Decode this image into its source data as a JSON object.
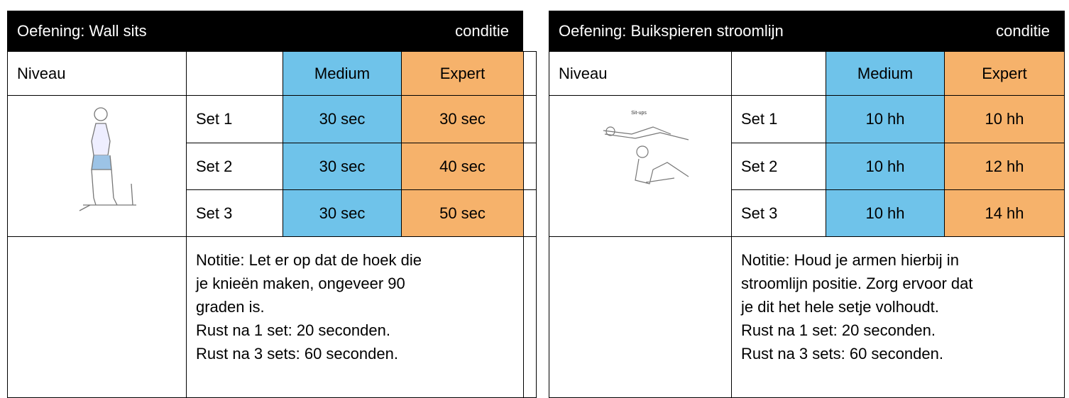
{
  "tables": [
    {
      "title": "Oefening: Wall sits",
      "category": "conditie",
      "level_label": "Niveau",
      "levels": [
        "Medium",
        "Expert"
      ],
      "rows": [
        {
          "label": "Set 1",
          "values": [
            "30 sec",
            "30 sec"
          ]
        },
        {
          "label": "Set 2",
          "values": [
            "30 sec",
            "40 sec"
          ]
        },
        {
          "label": "Set 3",
          "values": [
            "30 sec",
            "50 sec"
          ]
        }
      ],
      "note": [
        "Notitie: Let er op dat de hoek die",
        "je knieën maken, ongeveer 90",
        "graden is.",
        "Rust na 1 set: 20 seconden.",
        "Rust na 3 sets: 60 seconden."
      ]
    },
    {
      "title": "Oefening: Buikspieren stroomlijn",
      "category": "conditie",
      "level_label": "Niveau",
      "levels": [
        "Medium",
        "Expert"
      ],
      "image_caption": "Sit-ups",
      "rows": [
        {
          "label": "Set 1",
          "values": [
            "10 hh",
            "10 hh"
          ]
        },
        {
          "label": "Set 2",
          "values": [
            "10 hh",
            "12 hh"
          ]
        },
        {
          "label": "Set 3",
          "values": [
            "10 hh",
            "14 hh"
          ]
        }
      ],
      "note": [
        "Notitie: Houd je armen hierbij in",
        "stroomlijn positie. Zorg ervoor dat",
        "je dit het hele setje volhoudt.",
        "Rust na 1 set: 20 seconden.",
        "Rust na 3 sets: 60 seconden."
      ]
    }
  ]
}
